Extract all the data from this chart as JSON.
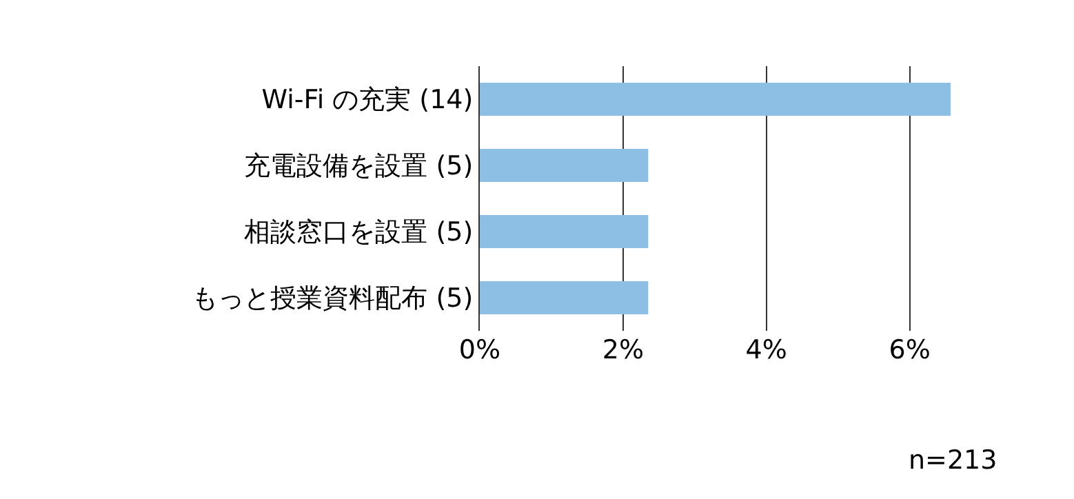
{
  "chart_data": {
    "type": "bar",
    "orientation": "horizontal",
    "categories": [
      "Wi-Fi の充実 (14)",
      "充電設備を設置 (5)",
      "相談窓口を設置 (5)",
      "もっと授業資料配布 (5)"
    ],
    "values": [
      6.57,
      2.35,
      2.35,
      2.35
    ],
    "color": "#8dbee3",
    "xlim": [
      0,
      6.6
    ],
    "xticks": [
      {
        "value": 0,
        "label": "0%"
      },
      {
        "value": 2,
        "label": "2%"
      },
      {
        "value": 4,
        "label": "4%"
      },
      {
        "value": 6,
        "label": "6%"
      }
    ],
    "grid": "x",
    "annotations": [
      "n=213"
    ]
  }
}
